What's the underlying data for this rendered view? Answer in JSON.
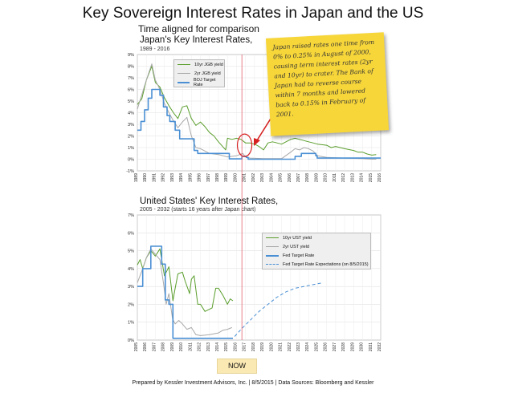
{
  "title": "Key Sovereign Interest Rates in Japan and the US",
  "subtitle": "Time aligned for comparison",
  "now_label": "NOW",
  "footer": "Prepared by Kessler Investment Advisors, Inc. | 8/5/2015 | Data Sources: Bloomberg and Kessler",
  "annotation": "Japan raised rates one time from 0% to 0.25% in August of 2000, causing term interest rates (2yr and 10yr) to crater. The Bank of Japan had to reverse course within 7 months and lowered back to 0.15% in February of 2001.",
  "colors": {
    "green": "#5a9e2c",
    "gray": "#a9a9a9",
    "blue": "#4a8fd4",
    "marker": "#e06070"
  },
  "chart_data": [
    {
      "type": "line",
      "title": "Japan's Key Interest Rates,",
      "subtitle": "1989 - 2016",
      "x_ticks": [
        "1989",
        "1990",
        "1991",
        "1992",
        "1993",
        "1994",
        "1995",
        "1996",
        "1997",
        "1998",
        "1999",
        "2000",
        "2001",
        "2002",
        "2003",
        "2004",
        "2005",
        "2006",
        "2007",
        "2008",
        "2009",
        "2010",
        "2011",
        "2012",
        "2013",
        "2014",
        "2015",
        "2016"
      ],
      "y_ticks": [
        "-1%",
        "0%",
        "1%",
        "2%",
        "3%",
        "4%",
        "5%",
        "6%",
        "7%",
        "8%",
        "9%"
      ],
      "ylim": [
        -1,
        9
      ],
      "xlim": [
        1989,
        2016
      ],
      "legend": "top-left",
      "series": [
        {
          "name": "10yr JGB yield",
          "color": "green",
          "x": [
            1989,
            1989.5,
            1990,
            1990.6,
            1991,
            1991.5,
            1992,
            1992.5,
            1993,
            1993.5,
            1994,
            1994.5,
            1995,
            1995.5,
            1996,
            1996.5,
            1997,
            1997.5,
            1998,
            1998.8,
            1999,
            1999.5,
            2000,
            2000.5,
            2001,
            2001.5,
            2002,
            2002.5,
            2003,
            2003.5,
            2004,
            2004.5,
            2005,
            2006,
            2006.5,
            2007,
            2007.5,
            2008,
            2008.5,
            2009,
            2010,
            2010.5,
            2011,
            2012,
            2013,
            2013.5,
            2014,
            2014.5,
            2015,
            2015.5
          ],
          "y": [
            4.7,
            5.2,
            6.8,
            8.0,
            6.6,
            6.2,
            5.3,
            4.6,
            4.0,
            3.5,
            4.5,
            4.6,
            3.5,
            2.9,
            3.2,
            2.8,
            2.3,
            2.0,
            1.5,
            0.8,
            1.8,
            1.7,
            1.8,
            1.7,
            1.4,
            1.4,
            1.3,
            1.1,
            0.8,
            1.4,
            1.5,
            1.4,
            1.3,
            1.7,
            1.8,
            1.7,
            1.6,
            1.5,
            1.4,
            1.3,
            1.2,
            1.0,
            1.1,
            0.9,
            0.75,
            0.6,
            0.6,
            0.45,
            0.35,
            0.4
          ]
        },
        {
          "name": "2yr JGB yield",
          "color": "gray",
          "x": [
            1989,
            1990,
            1990.6,
            1991,
            1991.5,
            1992,
            1992.5,
            1993,
            1993.5,
            1994,
            1994.5,
            1995,
            1995.5,
            1996,
            1997,
            1998,
            1999,
            2000,
            2000.7,
            2001,
            2001.5,
            2003,
            2005,
            2006,
            2006.5,
            2007,
            2007.5,
            2008,
            2008.5,
            2009,
            2010,
            2012,
            2014,
            2015,
            2015.5
          ],
          "y": [
            4.3,
            6.8,
            8.2,
            6.8,
            6.0,
            4.8,
            4.0,
            3.3,
            2.7,
            3.2,
            3.6,
            2.0,
            1.0,
            0.9,
            0.5,
            0.4,
            0.2,
            0.3,
            0.5,
            0.2,
            0.1,
            0.05,
            0.05,
            0.6,
            0.9,
            0.8,
            1.0,
            0.9,
            0.7,
            0.3,
            0.15,
            0.1,
            0.05,
            0.0,
            0.0
          ]
        },
        {
          "name": "BOJ Target Rate",
          "color": "blue",
          "step": true,
          "x": [
            1989,
            1989.4,
            1989.8,
            1990.2,
            1990.6,
            1991.5,
            1991.9,
            1992.3,
            1992.6,
            1993.2,
            1993.7,
            1995.3,
            1995.7,
            1999.2,
            2000.6,
            2001.1,
            2001.3,
            2006.5,
            2007.2,
            2008.8,
            2008.95,
            2016
          ],
          "y": [
            2.5,
            3.25,
            4.25,
            5.25,
            6.0,
            5.5,
            4.5,
            3.75,
            3.25,
            2.5,
            1.75,
            0.75,
            0.5,
            0.03,
            0.25,
            0.15,
            0.0,
            0.25,
            0.5,
            0.3,
            0.1,
            0.1
          ]
        }
      ]
    },
    {
      "type": "line",
      "title": "United States' Key Interest Rates,",
      "subtitle": "2005 - 2032 (starts 16 years after Japan chart)",
      "x_ticks": [
        "2005",
        "2006",
        "2007",
        "2008",
        "2009",
        "2010",
        "2011",
        "2012",
        "2013",
        "2014",
        "2015",
        "2016",
        "2017",
        "2018",
        "2019",
        "2020",
        "2021",
        "2022",
        "2023",
        "2024",
        "2025",
        "2026",
        "2027",
        "2028",
        "2029",
        "2030",
        "2031",
        "2032"
      ],
      "y_ticks": [
        "0%",
        "1%",
        "2%",
        "3%",
        "4%",
        "5%",
        "6%",
        "7%"
      ],
      "ylim": [
        0,
        7
      ],
      "xlim": [
        2005,
        2032
      ],
      "legend": "top-right",
      "series": [
        {
          "name": "10yr UST yield",
          "color": "green",
          "x": [
            2005,
            2005.3,
            2005.6,
            2006,
            2006.5,
            2007,
            2007.5,
            2008,
            2008.5,
            2008.95,
            2009.2,
            2009.5,
            2010,
            2010.3,
            2010.8,
            2011,
            2011.3,
            2011.7,
            2012,
            2012.5,
            2012.9,
            2013.3,
            2013.7,
            2014,
            2014.5,
            2015,
            2015.3,
            2015.6
          ],
          "y": [
            4.2,
            4.5,
            4.0,
            4.6,
            5.0,
            4.7,
            5.1,
            3.6,
            4.1,
            2.2,
            2.9,
            3.7,
            3.8,
            3.3,
            2.6,
            3.4,
            3.6,
            2.0,
            2.0,
            1.6,
            1.7,
            1.8,
            2.9,
            2.9,
            2.5,
            2.0,
            2.3,
            2.2
          ]
        },
        {
          "name": "2yr UST yield",
          "color": "gray",
          "x": [
            2005,
            2005.6,
            2006,
            2006.5,
            2007,
            2007.5,
            2007.9,
            2008.2,
            2008.5,
            2008.9,
            2009.2,
            2009.6,
            2010,
            2010.5,
            2011,
            2011.5,
            2012,
            2013,
            2014,
            2014.5,
            2015,
            2015.5
          ],
          "y": [
            3.2,
            4.0,
            4.6,
            5.1,
            4.8,
            4.5,
            3.2,
            2.0,
            2.6,
            1.2,
            0.9,
            1.1,
            0.9,
            0.6,
            0.7,
            0.3,
            0.25,
            0.3,
            0.4,
            0.55,
            0.6,
            0.7
          ]
        },
        {
          "name": "Fed Target Rate",
          "color": "blue",
          "step": true,
          "x": [
            2005,
            2005.6,
            2006.5,
            2007.7,
            2008.1,
            2008.5,
            2008.95,
            2015.6
          ],
          "y": [
            3.0,
            4.0,
            5.25,
            4.25,
            2.25,
            2.0,
            0.1,
            0.1
          ]
        },
        {
          "name": "Fed Target Rate Expectations (on 8/5/2015)",
          "color": "blue",
          "dashed": true,
          "x": [
            2015.8,
            2016.5,
            2017.5,
            2018.5,
            2019.5,
            2020.5,
            2021.5,
            2022.5,
            2023.5,
            2024.5,
            2025.5
          ],
          "y": [
            0.2,
            0.6,
            1.1,
            1.6,
            2.0,
            2.4,
            2.7,
            2.9,
            3.0,
            3.1,
            3.2
          ]
        }
      ]
    }
  ]
}
